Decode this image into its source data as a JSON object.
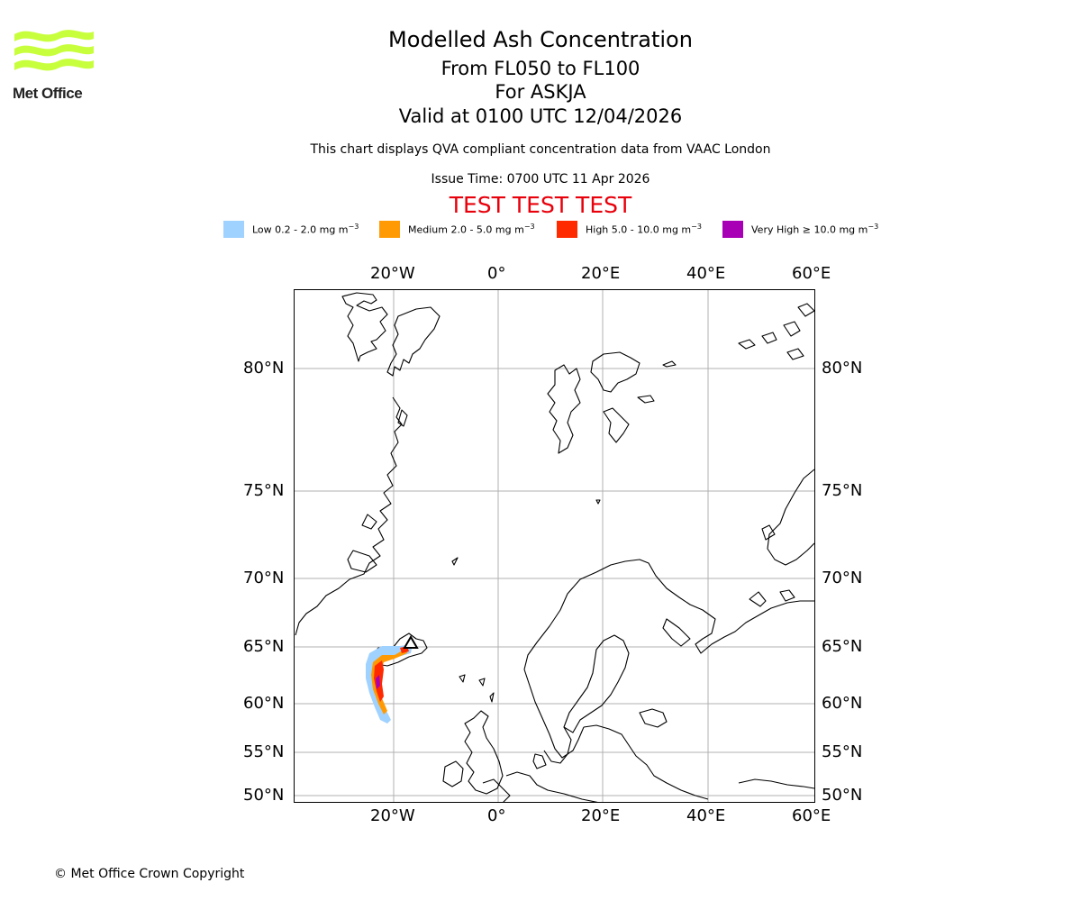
{
  "logo": {
    "text": "Met Office",
    "color": "#c8ff3c"
  },
  "header": {
    "title": "Modelled Ash Concentration",
    "levels": "From FL050 to FL100",
    "volcano": "For ASKJA",
    "valid": "Valid at 0100 UTC 12/04/2026",
    "description": "This chart displays QVA compliant concentration data from VAAC London",
    "issue": "Issue Time: 0700 UTC 11 Apr 2026",
    "test_banner": "TEST TEST TEST"
  },
  "legend": [
    {
      "label": "Low 0.2 - 2.0 mg m",
      "unit_exp": "−3",
      "color": "#a0d2ff"
    },
    {
      "label": "Medium 2.0 - 5.0 mg m",
      "unit_exp": "−3",
      "color": "#ff9a05"
    },
    {
      "label": "High 5.0 - 10.0 mg m",
      "unit_exp": "−3",
      "color": "#ff2a00"
    },
    {
      "label": "Very High ≥ 10.0 mg m",
      "unit_exp": "−3",
      "color": "#a800b4"
    }
  ],
  "map": {
    "lon_ticks": [
      "20°W",
      "0°",
      "20°E",
      "40°E",
      "60°E"
    ],
    "lat_ticks": [
      "80°N",
      "75°N",
      "70°N",
      "65°N",
      "60°N",
      "55°N",
      "50°N"
    ],
    "volcano_name": "ASKJA",
    "volcano_location": {
      "lat": 65.03,
      "lon": -16.75
    }
  },
  "footer": {
    "copyright": "© Met Office Crown Copyright"
  }
}
